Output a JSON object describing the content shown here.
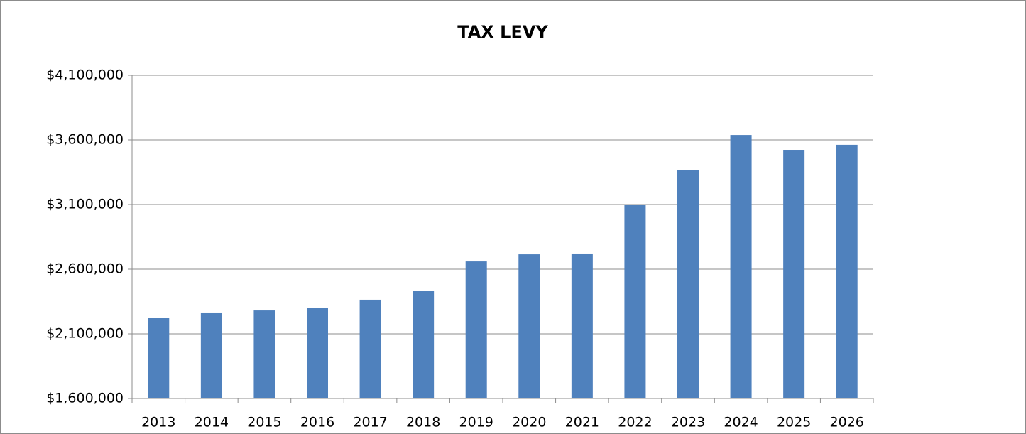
{
  "chart_data": {
    "type": "bar",
    "title": "TAX LEVY",
    "categories": [
      "2013",
      "2014",
      "2015",
      "2016",
      "2017",
      "2018",
      "2019",
      "2020",
      "2021",
      "2022",
      "2023",
      "2024",
      "2025",
      "2026"
    ],
    "values": [
      2225000,
      2265000,
      2281000,
      2303000,
      2364000,
      2435000,
      2660000,
      2715000,
      2721000,
      3095000,
      3364000,
      3638000,
      3523000,
      3562000
    ],
    "color": "#4f81bd",
    "ylim": [
      1600000,
      4100000
    ],
    "yticks": [
      {
        "value": 1600000,
        "label": "$1,600,000"
      },
      {
        "value": 2100000,
        "label": "$2,100,000"
      },
      {
        "value": 2600000,
        "label": "$2,600,000"
      },
      {
        "value": 3100000,
        "label": "$3,100,000"
      },
      {
        "value": 3600000,
        "label": "$3,600,000"
      },
      {
        "value": 4100000,
        "label": "$4,100,000"
      }
    ],
    "grid": true
  }
}
